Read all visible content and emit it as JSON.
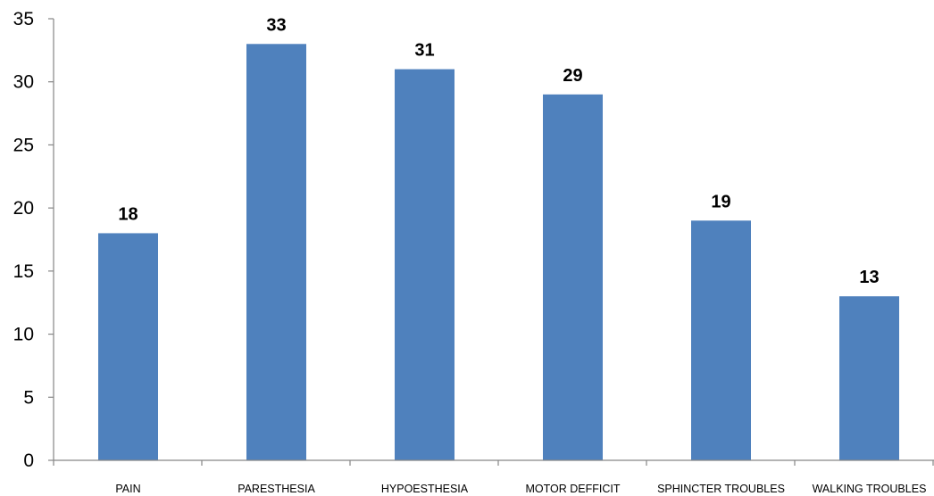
{
  "chart_data": {
    "type": "bar",
    "title": "",
    "xlabel": "",
    "ylabel": "",
    "categories": [
      "PAIN",
      "PARESTHESIA",
      "HYPOESTHESIA",
      "MOTOR DEFFICIT",
      "SPHINCTER TROUBLES",
      "WALKING TROUBLES"
    ],
    "values": [
      18,
      33,
      31,
      29,
      19,
      13
    ],
    "data_labels": [
      "18",
      "33",
      "31",
      "29",
      "19",
      "13"
    ],
    "ylim": [
      0,
      35
    ],
    "yticks": [
      0,
      5,
      10,
      15,
      20,
      25,
      30,
      35
    ],
    "ytick_labels": [
      "0",
      "5",
      "10",
      "15",
      "20",
      "25",
      "30",
      "35"
    ],
    "grid": false,
    "legend": "none",
    "colors": {
      "bar": "#4f81bd",
      "axis": "#868686"
    }
  }
}
